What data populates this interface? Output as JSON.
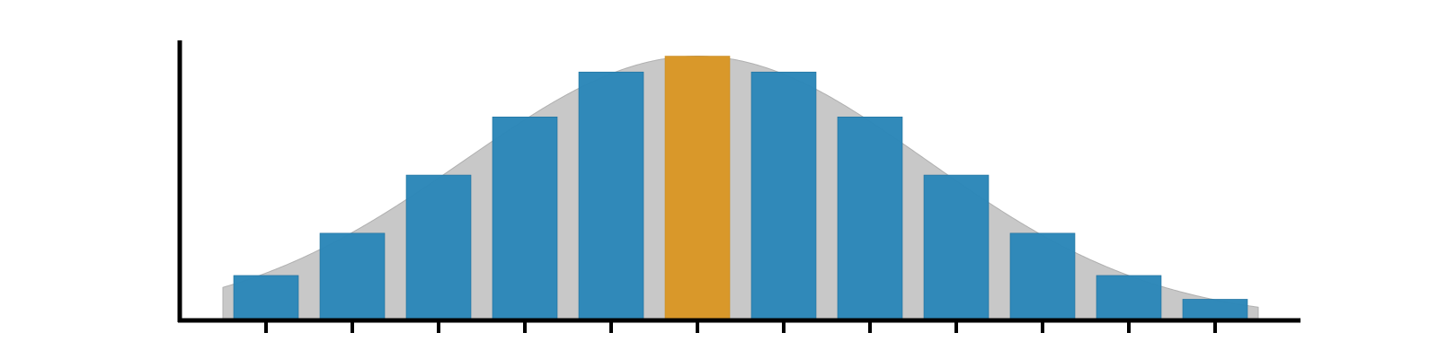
{
  "chart_data": {
    "type": "bar",
    "categories": [
      "",
      "",
      "",
      "",
      "",
      "",
      "",
      "",
      "",
      "",
      "",
      ""
    ],
    "values": [
      1.7,
      3.3,
      5.5,
      7.7,
      9.4,
      10.0,
      9.4,
      7.7,
      5.5,
      3.3,
      1.7,
      0.8
    ],
    "highlight_index": 5,
    "ylim": [
      0,
      10.8
    ],
    "grid": false,
    "legend": "none",
    "x_tick_labels_shown": false,
    "y_tick_labels_shown": false,
    "overlay": {
      "type": "area",
      "shape": "normal-curve",
      "peak": 10.0,
      "peak_at_category": 5,
      "start_value": 1.25,
      "end_value": 0.5
    },
    "colors": {
      "bar": "#2a86b8",
      "highlight_bar": "#d9982a",
      "overlay_fill": "#c8c8c8",
      "axis": "#000000"
    }
  }
}
